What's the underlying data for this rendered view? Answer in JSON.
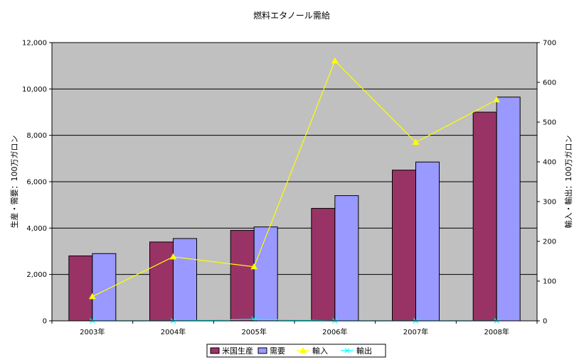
{
  "chart_data": {
    "type": "bar",
    "title": "燃料エタノール需給",
    "categories": [
      "2003年",
      "2004年",
      "2005年",
      "2006年",
      "2007年",
      "2008年"
    ],
    "y_left": {
      "label": "生産・需要：100万ガロン",
      "ylim": [
        0,
        12000
      ],
      "ticks": [
        "0",
        "2,000",
        "4,000",
        "6,000",
        "8,000",
        "10,000",
        "12,000"
      ]
    },
    "y_right": {
      "label": "輸入・輸出：100万ガロン",
      "ylim": [
        0,
        700
      ],
      "ticks": [
        "0",
        "100",
        "200",
        "300",
        "400",
        "500",
        "600",
        "700"
      ]
    },
    "series": [
      {
        "name": "米国生産",
        "type": "bar",
        "axis": "left",
        "color": "#993366",
        "values": [
          2800,
          3400,
          3900,
          4850,
          6500,
          9000
        ]
      },
      {
        "name": "需要",
        "type": "bar",
        "axis": "left",
        "color": "#9999ff",
        "values": [
          2900,
          3550,
          4050,
          5400,
          6850,
          9650
        ]
      },
      {
        "name": "輸入",
        "type": "line",
        "axis": "right",
        "color": "#ffff00",
        "marker": "triangle",
        "values": [
          61,
          161,
          136,
          654,
          449,
          556
        ]
      },
      {
        "name": "輸出",
        "type": "line",
        "axis": "right",
        "color": "#00ffff",
        "marker": "x",
        "values": [
          0,
          0,
          4,
          0,
          0,
          0
        ]
      }
    ],
    "grid": true,
    "plot_background": "#c0c0c0",
    "legend_position": "bottom"
  }
}
